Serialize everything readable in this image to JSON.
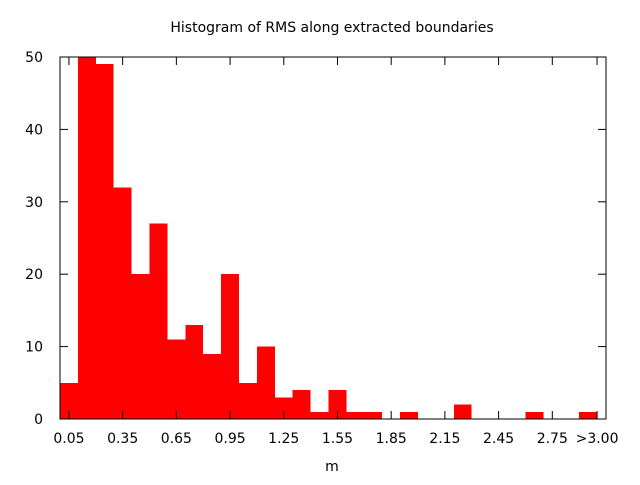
{
  "chart_data": {
    "type": "bar",
    "title": "Histogram of RMS along extracted boundaries",
    "xlabel": "m",
    "ylabel": "",
    "ylim": [
      0,
      50
    ],
    "xlim": [
      0,
      3.05
    ],
    "bin_width": 0.1,
    "color": "#ff0000",
    "grid": false,
    "legend": "none",
    "yticks": [
      "0",
      "10",
      "20",
      "30",
      "40",
      "50"
    ],
    "ytick_values": [
      0,
      10,
      20,
      30,
      40,
      50
    ],
    "xticks": [
      "0.05",
      "0.35",
      "0.65",
      "0.95",
      "1.25",
      "1.55",
      "1.85",
      "2.15",
      "2.45",
      "2.75",
      ">3.00"
    ],
    "xtick_values": [
      0.05,
      0.35,
      0.65,
      0.95,
      1.25,
      1.55,
      1.85,
      2.15,
      2.45,
      2.75,
      3.0
    ],
    "bins": [
      {
        "x": 0.05,
        "value": 5
      },
      {
        "x": 0.15,
        "value": 50
      },
      {
        "x": 0.25,
        "value": 49
      },
      {
        "x": 0.35,
        "value": 32
      },
      {
        "x": 0.45,
        "value": 20
      },
      {
        "x": 0.55,
        "value": 27
      },
      {
        "x": 0.65,
        "value": 11
      },
      {
        "x": 0.75,
        "value": 13
      },
      {
        "x": 0.85,
        "value": 9
      },
      {
        "x": 0.95,
        "value": 20
      },
      {
        "x": 1.05,
        "value": 5
      },
      {
        "x": 1.15,
        "value": 10
      },
      {
        "x": 1.25,
        "value": 3
      },
      {
        "x": 1.35,
        "value": 4
      },
      {
        "x": 1.45,
        "value": 1
      },
      {
        "x": 1.55,
        "value": 4
      },
      {
        "x": 1.65,
        "value": 1
      },
      {
        "x": 1.75,
        "value": 1
      },
      {
        "x": 1.85,
        "value": 0
      },
      {
        "x": 1.95,
        "value": 1
      },
      {
        "x": 2.05,
        "value": 0
      },
      {
        "x": 2.15,
        "value": 0
      },
      {
        "x": 2.25,
        "value": 2
      },
      {
        "x": 2.35,
        "value": 0
      },
      {
        "x": 2.45,
        "value": 0
      },
      {
        "x": 2.55,
        "value": 0
      },
      {
        "x": 2.65,
        "value": 1
      },
      {
        "x": 2.75,
        "value": 0
      },
      {
        "x": 2.85,
        "value": 0
      },
      {
        "x": 2.95,
        "value": 1
      }
    ]
  }
}
